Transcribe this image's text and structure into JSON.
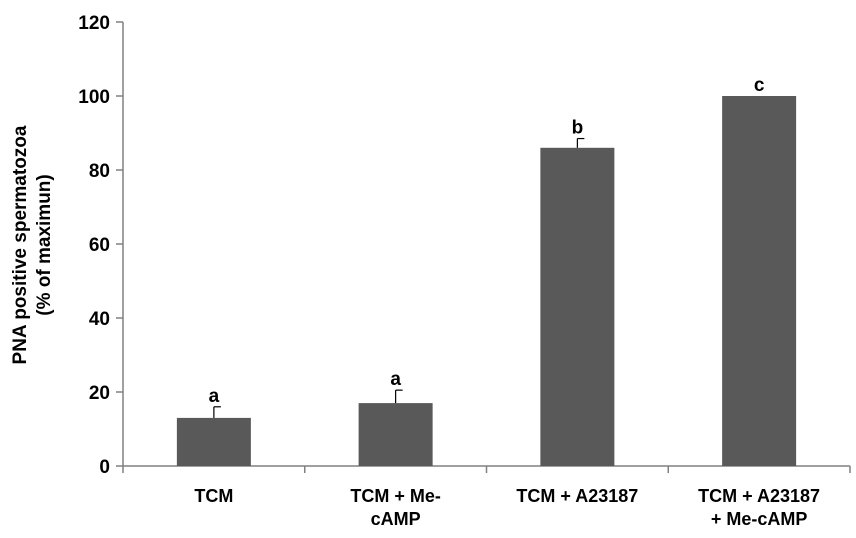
{
  "chart_data": {
    "type": "bar",
    "categories": [
      [
        "TCM"
      ],
      [
        "TCM + Me-",
        "cAMP"
      ],
      [
        "TCM + A23187"
      ],
      [
        "TCM + A23187",
        "+ Me-cAMP"
      ]
    ],
    "values": [
      13,
      17,
      86,
      100
    ],
    "errors": [
      3,
      3.5,
      2.5,
      0
    ],
    "significance_letters": [
      "a",
      "a",
      "b",
      "c"
    ],
    "ylabel_lines": [
      "PNA positive spermatozoa",
      "(% of maximun)"
    ],
    "ylim": [
      0,
      120
    ],
    "yticks": [
      0,
      20,
      40,
      60,
      80,
      100,
      120
    ],
    "grid": false,
    "bar_color": "#595959"
  }
}
